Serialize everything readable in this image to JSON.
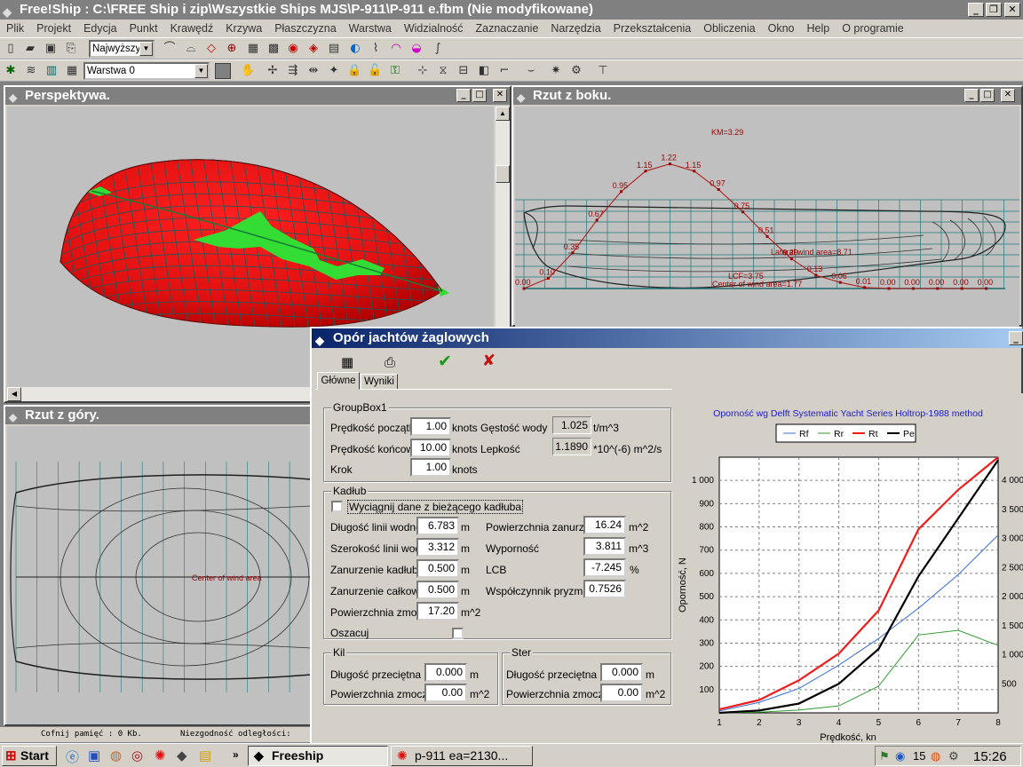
{
  "window": {
    "title": "Free!Ship  : C:\\FREE Ship i zip\\Wszystkie Ships MJS\\P-911\\P-911 e.fbm (Nie modyfikowane)"
  },
  "menu": [
    "Plik",
    "Projekt",
    "Edycja",
    "Punkt",
    "Krawędź",
    "Krzywa",
    "Płaszczyzna",
    "Warstwa",
    "Widzialność",
    "Zaznaczanie",
    "Narzędzia",
    "Przekształcenia",
    "Obliczenia",
    "Okno",
    "Help",
    "O programie"
  ],
  "toolbar": {
    "precision_value": "Najwyższy",
    "layer_value": "Warstwa 0"
  },
  "views": {
    "perspective": {
      "title": "Perspektywa."
    },
    "side": {
      "title": "Rzut z boku.",
      "km_label": "KM=3.29",
      "lateral_label": "Lateral wind area=8.71",
      "lcf_label": "LCF=3.75",
      "center_label": "Center of wind area=1.77",
      "curve_labels": [
        "0.00",
        "0.10",
        "0.35",
        "0.67",
        "0.95",
        "1.15",
        "1.22",
        "1.15",
        "0.97",
        "0.75",
        "0.51",
        "0.29",
        "0.13",
        "0.06",
        "0.01",
        "0.00",
        "0.00",
        "0.00",
        "0.00",
        "0.00"
      ]
    },
    "top": {
      "title": "Rzut z góry.",
      "center_label": "Center of wind area"
    }
  },
  "status": {
    "undo": "Cofnij pamięć : 0 Kb.",
    "error": "Niezgodność odległości:"
  },
  "dialog": {
    "title": "Opór jachtów żaglowych",
    "tabs": [
      "Główne",
      "Wyniki"
    ],
    "group1": {
      "title": "GroupBox1",
      "speed_start_label": "Prędkość początkowa",
      "speed_start_value": "1.00",
      "speed_end_label": "Prędkość końcowa",
      "speed_end_value": "10.00",
      "step_label": "Krok",
      "step_value": "1.00",
      "knots": "knots",
      "density_label": "knots Gęstość wody",
      "density_value": "1.025",
      "density_unit": "t/m^3",
      "viscosity_label": "knots Lepkość",
      "viscosity_value": "1.1890",
      "viscosity_unit": "*10^(-6) m^2/s"
    },
    "hull": {
      "title": "Kadłub",
      "extract_label": "Wyciągnij dane z bieżącego kadłuba",
      "lwl_label": "Długość linii wodnej",
      "lwl_value": "6.783",
      "bwl_label": "Szerokość linii wodnej",
      "bwl_value": "3.312",
      "draft_hull_label": "Zanurzenie kadłuba",
      "draft_hull_value": "0.500",
      "draft_total_label": "Zanurzenie całkowite",
      "draft_total_value": "0.500",
      "wetted_label": "Powierzchnia zmoczona",
      "wetted_value": "17.20",
      "wetted_area_label": "Powierzchnia zanurzona",
      "wetted_area_value": "16.24",
      "displacement_label": "Wyporność",
      "displacement_value": "3.811",
      "lcb_label": "LCB",
      "lcb_value": "-7.245",
      "cp_label": "Współczynnik pryzmatyczny",
      "cp_value": "0.7526",
      "estimate_label": "Oszacuj",
      "m": "m",
      "m2": "m^2",
      "m3": "m^3",
      "pct": "%"
    },
    "keel": {
      "title": "Kil",
      "chord_label": "Długość przeciętna",
      "chord_value": "0.000",
      "area_label": "Powierzchnia zmoczona",
      "area_value": "0.00"
    },
    "rudder": {
      "title": "Ster",
      "chord_label": "Długość przeciętna",
      "chord_value": "0.000",
      "area_label": "Powierzchnia zmoczona",
      "area_value": "0.00"
    }
  },
  "chart_data": {
    "type": "line",
    "title": "Oporność wg Delft Systematic Yacht Series Holtrop-1988 method",
    "xlabel": "Prędkość, kn",
    "ylabel": "Oporność, N",
    "x": [
      1,
      2,
      3,
      4,
      5,
      6,
      7,
      8
    ],
    "xlim": [
      1,
      8
    ],
    "ylim": [
      0,
      1100
    ],
    "y2lim": [
      0,
      4400
    ],
    "yticks": [
      "100",
      "200",
      "300",
      "400",
      "500",
      "600",
      "700",
      "800",
      "900",
      "1 000"
    ],
    "y2ticks": [
      "500",
      "1 000",
      "1 500",
      "2 000",
      "2 500",
      "3 000",
      "3 500",
      "4 000"
    ],
    "series": [
      {
        "name": "Rf",
        "color": "#3a6fd8",
        "axis": "left",
        "values": [
          8,
          45,
          105,
          205,
          320,
          450,
          595,
          765
        ]
      },
      {
        "name": "Rr",
        "color": "#2e9a2e",
        "axis": "left",
        "values": [
          0,
          3,
          12,
          30,
          115,
          335,
          355,
          290
        ]
      },
      {
        "name": "Rt",
        "color": "#ee1c1c",
        "axis": "left",
        "values": [
          15,
          55,
          140,
          255,
          440,
          790,
          960,
          1100
        ]
      },
      {
        "name": "Pe",
        "color": "#000000",
        "axis": "right",
        "values": [
          0,
          40,
          160,
          500,
          1100,
          2350,
          3350,
          4350
        ]
      }
    ],
    "grid": true,
    "legend": "top"
  },
  "taskbar": {
    "start": "Start",
    "task1": "Freeship",
    "task2": "p-911 ea=2130...",
    "clock": "15:26",
    "tray_num": "15"
  }
}
